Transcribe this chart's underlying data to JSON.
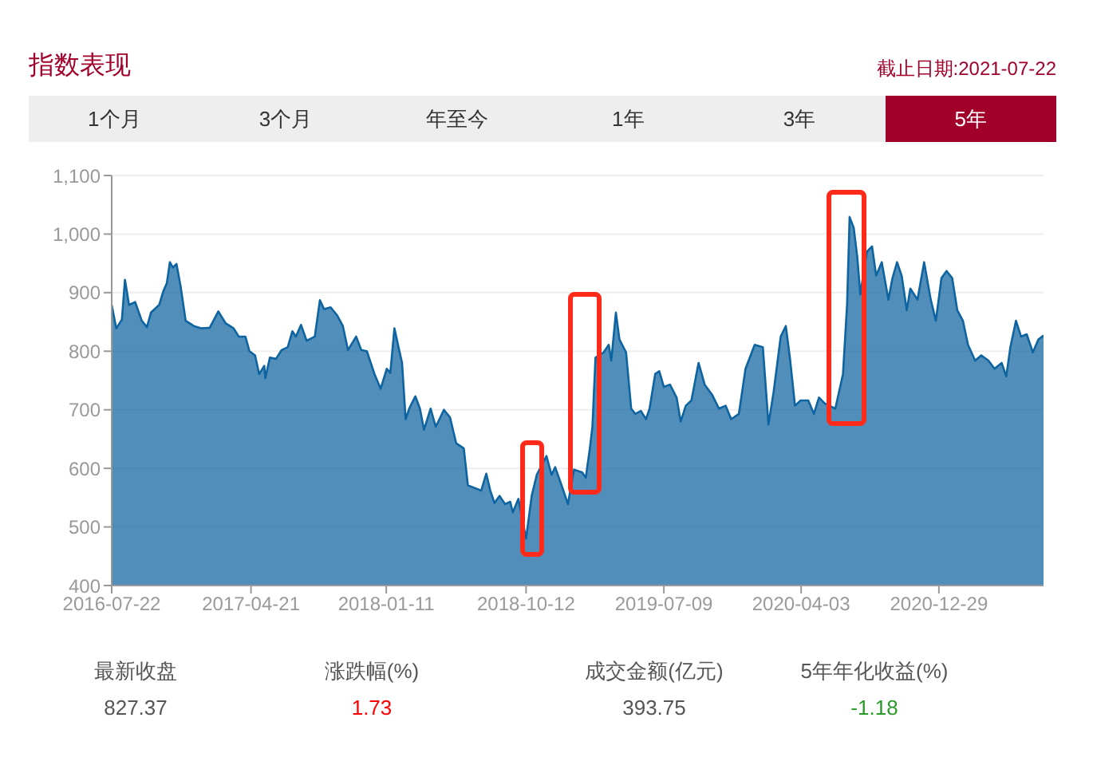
{
  "chart_data": {
    "type": "area",
    "title": "指数表现",
    "annotations": [
      "截止日期:2021-07-22",
      "1个月",
      "3个月",
      "年至今",
      "1年",
      "3年",
      "5年",
      "最新收盘",
      "827.37",
      "涨跌幅(%)",
      "1.73",
      "成交金额(亿元)",
      "393.75",
      "5年年化收益(%)",
      "-1.18"
    ],
    "x": [
      "2016-07-22",
      "2016-07-31",
      "2016-08-11",
      "2016-08-17",
      "2016-08-25",
      "2016-09-06",
      "2016-09-19",
      "2016-09-29",
      "2016-10-07",
      "2016-10-23",
      "2016-10-31",
      "2016-11-07",
      "2016-11-13",
      "2016-11-19",
      "2016-11-26",
      "2016-12-04",
      "2016-12-14",
      "2016-12-30",
      "2017-01-14",
      "2017-01-30",
      "2017-02-16",
      "2017-03-02",
      "2017-03-18",
      "2017-03-28",
      "2017-04-10",
      "2017-04-18",
      "2017-04-29",
      "2017-05-07",
      "2017-05-17",
      "2017-05-19",
      "2017-05-28",
      "2017-06-09",
      "2017-06-20",
      "2017-07-02",
      "2017-07-11",
      "2017-07-18",
      "2017-07-28",
      "2017-08-08",
      "2017-08-24",
      "2017-09-03",
      "2017-09-11",
      "2017-09-24",
      "2017-10-07",
      "2017-10-18",
      "2017-10-28",
      "2017-11-13",
      "2017-11-23",
      "2017-12-04",
      "2017-12-19",
      "2017-12-31",
      "2018-01-12",
      "2018-01-19",
      "2018-01-27",
      "2018-02-04",
      "2018-02-11",
      "2018-02-18",
      "2018-02-25",
      "2018-03-09",
      "2018-03-18",
      "2018-03-26",
      "2018-04-08",
      "2018-04-18",
      "2018-05-04",
      "2018-05-16",
      "2018-05-28",
      "2018-06-12",
      "2018-06-20",
      "2018-07-05",
      "2018-07-16",
      "2018-07-26",
      "2018-08-03",
      "2018-08-11",
      "2018-08-21",
      "2018-09-01",
      "2018-09-11",
      "2018-09-16",
      "2018-09-27",
      "2018-10-04",
      "2018-10-12",
      "2018-10-23",
      "2018-11-02",
      "2018-11-21",
      "2018-12-01",
      "2018-12-08",
      "2018-12-19",
      "2019-01-02",
      "2019-01-14",
      "2019-01-30",
      "2019-02-06",
      "2019-02-14",
      "2019-02-19",
      "2019-02-25",
      "2019-03-13",
      "2019-03-23",
      "2019-03-28",
      "2019-04-06",
      "2019-04-13",
      "2019-04-26",
      "2019-05-06",
      "2019-05-14",
      "2019-05-25",
      "2019-06-04",
      "2019-06-11",
      "2019-06-22",
      "2019-06-30",
      "2019-07-09",
      "2019-07-21",
      "2019-08-03",
      "2019-08-11",
      "2019-08-21",
      "2019-09-01",
      "2019-09-15",
      "2019-09-27",
      "2019-10-12",
      "2019-10-25",
      "2019-11-07",
      "2019-11-18",
      "2019-12-03",
      "2019-12-16",
      "2020-01-03",
      "2020-01-19",
      "2020-01-30",
      "2020-02-09",
      "2020-02-23",
      "2020-03-04",
      "2020-03-12",
      "2020-03-22",
      "2020-04-02",
      "2020-04-17",
      "2020-04-28",
      "2020-05-08",
      "2020-05-19",
      "2020-06-09",
      "2020-06-24",
      "2020-07-02",
      "2020-07-07",
      "2020-07-15",
      "2020-07-22",
      "2020-07-28",
      "2020-08-10",
      "2020-08-20",
      "2020-08-28",
      "2020-09-08",
      "2020-09-21",
      "2020-09-29",
      "2020-10-08",
      "2020-10-17",
      "2020-10-27",
      "2020-11-03",
      "2020-11-17",
      "2020-11-30",
      "2020-12-13",
      "2020-12-23",
      "2021-01-03",
      "2021-01-13",
      "2021-01-24",
      "2021-02-03",
      "2021-02-14",
      "2021-02-24",
      "2021-03-10",
      "2021-03-22",
      "2021-04-05",
      "2021-04-17",
      "2021-05-01",
      "2021-05-10",
      "2021-05-18",
      "2021-05-29",
      "2021-06-08",
      "2021-06-19",
      "2021-07-01",
      "2021-07-12",
      "2021-07-22"
    ],
    "series": [
      {
        "color": "#0e64a0",
        "values": [
          879,
          839,
          854,
          922,
          879,
          884,
          852,
          841,
          866,
          879,
          902,
          916,
          952,
          943,
          949,
          911,
          852,
          843,
          839,
          840,
          868,
          848,
          839,
          825,
          825,
          800,
          793,
          761,
          775,
          754,
          789,
          787,
          802,
          807,
          834,
          825,
          845,
          818,
          825,
          887,
          872,
          875,
          861,
          843,
          802,
          825,
          802,
          800,
          761,
          736,
          770,
          763,
          839,
          807,
          780,
          684,
          702,
          723,
          702,
          666,
          702,
          671,
          700,
          687,
          643,
          634,
          571,
          566,
          562,
          591,
          562,
          541,
          553,
          539,
          543,
          525,
          548,
          516,
          480,
          553,
          589,
          621,
          589,
          602,
          575,
          539,
          598,
          593,
          584,
          634,
          671,
          789,
          798,
          811,
          784,
          866,
          820,
          798,
          702,
          693,
          698,
          684,
          702,
          761,
          766,
          739,
          743,
          721,
          680,
          707,
          716,
          780,
          743,
          725,
          702,
          707,
          684,
          693,
          770,
          811,
          807,
          675,
          730,
          825,
          843,
          789,
          707,
          716,
          716,
          693,
          721,
          711,
          702,
          761,
          879,
          1029,
          1011,
          961,
          897,
          970,
          979,
          929,
          952,
          888,
          925,
          952,
          929,
          870,
          907,
          888,
          952,
          888,
          852,
          925,
          937,
          925,
          870,
          852,
          811,
          784,
          793,
          784,
          770,
          780,
          757,
          807,
          852,
          825,
          829,
          798,
          820,
          827
        ]
      }
    ],
    "xlim": [
      "2016-07-22",
      "2021-07-22"
    ],
    "xticks": [
      "2016-07-22",
      "2017-04-21",
      "2018-01-11",
      "2018-10-12",
      "2019-07-09",
      "2020-04-03",
      "2020-12-29"
    ],
    "ylim": [
      400,
      1100
    ],
    "yticks": [
      400,
      500,
      600,
      700,
      800,
      900,
      {
        "value": 1000,
        "label": "1,000"
      },
      {
        "value": 1100,
        "label": "1,100"
      }
    ],
    "grid": "y"
  }
}
